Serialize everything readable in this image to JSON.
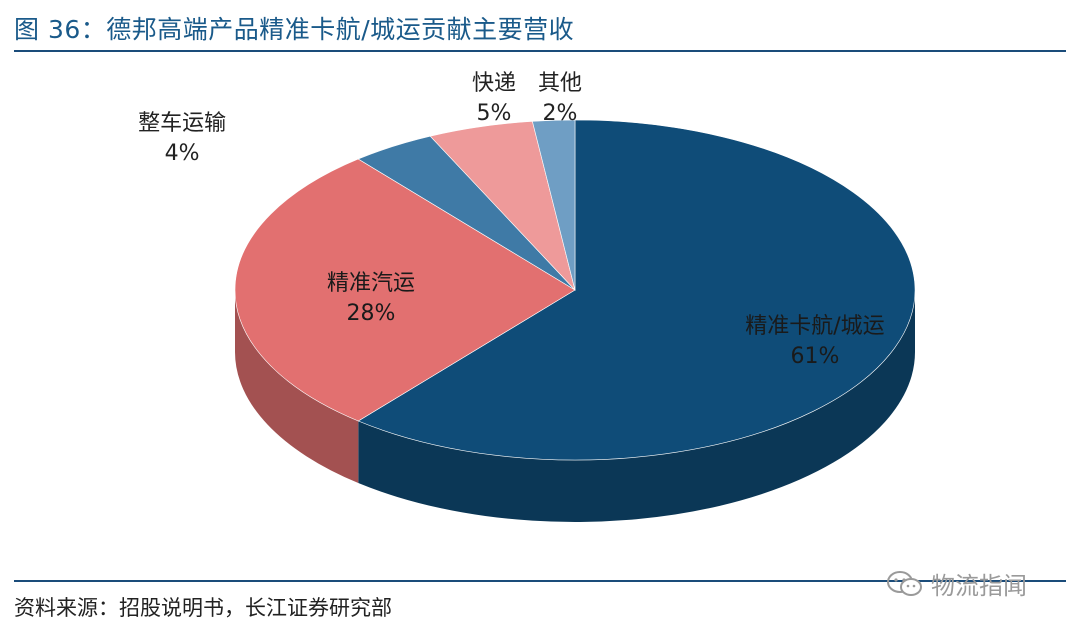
{
  "header": {
    "title": "图 36：德邦高端产品精准卡航/城运贡献主要营收"
  },
  "footer": {
    "source": "资料来源：招股说明书，长江证券研究部"
  },
  "watermark": {
    "text": "物流指闻",
    "icon": "wechat-icon"
  },
  "chart_data": {
    "type": "pie",
    "title": "图 36：德邦高端产品精准卡航/城运贡献主要营收",
    "slices": [
      {
        "label": "精准卡航/城运",
        "value": 61,
        "display": "61%",
        "color": "#0f4c78"
      },
      {
        "label": "精准汽运",
        "value": 28,
        "display": "28%",
        "color": "#e27070"
      },
      {
        "label": "整车运输",
        "value": 4,
        "display": "4%",
        "color": "#3f7aa6"
      },
      {
        "label": "快递",
        "value": 5,
        "display": "5%",
        "color": "#ee9a9a"
      },
      {
        "label": "其他",
        "value": 2,
        "display": "2%",
        "color": "#6f9ec4"
      }
    ]
  }
}
